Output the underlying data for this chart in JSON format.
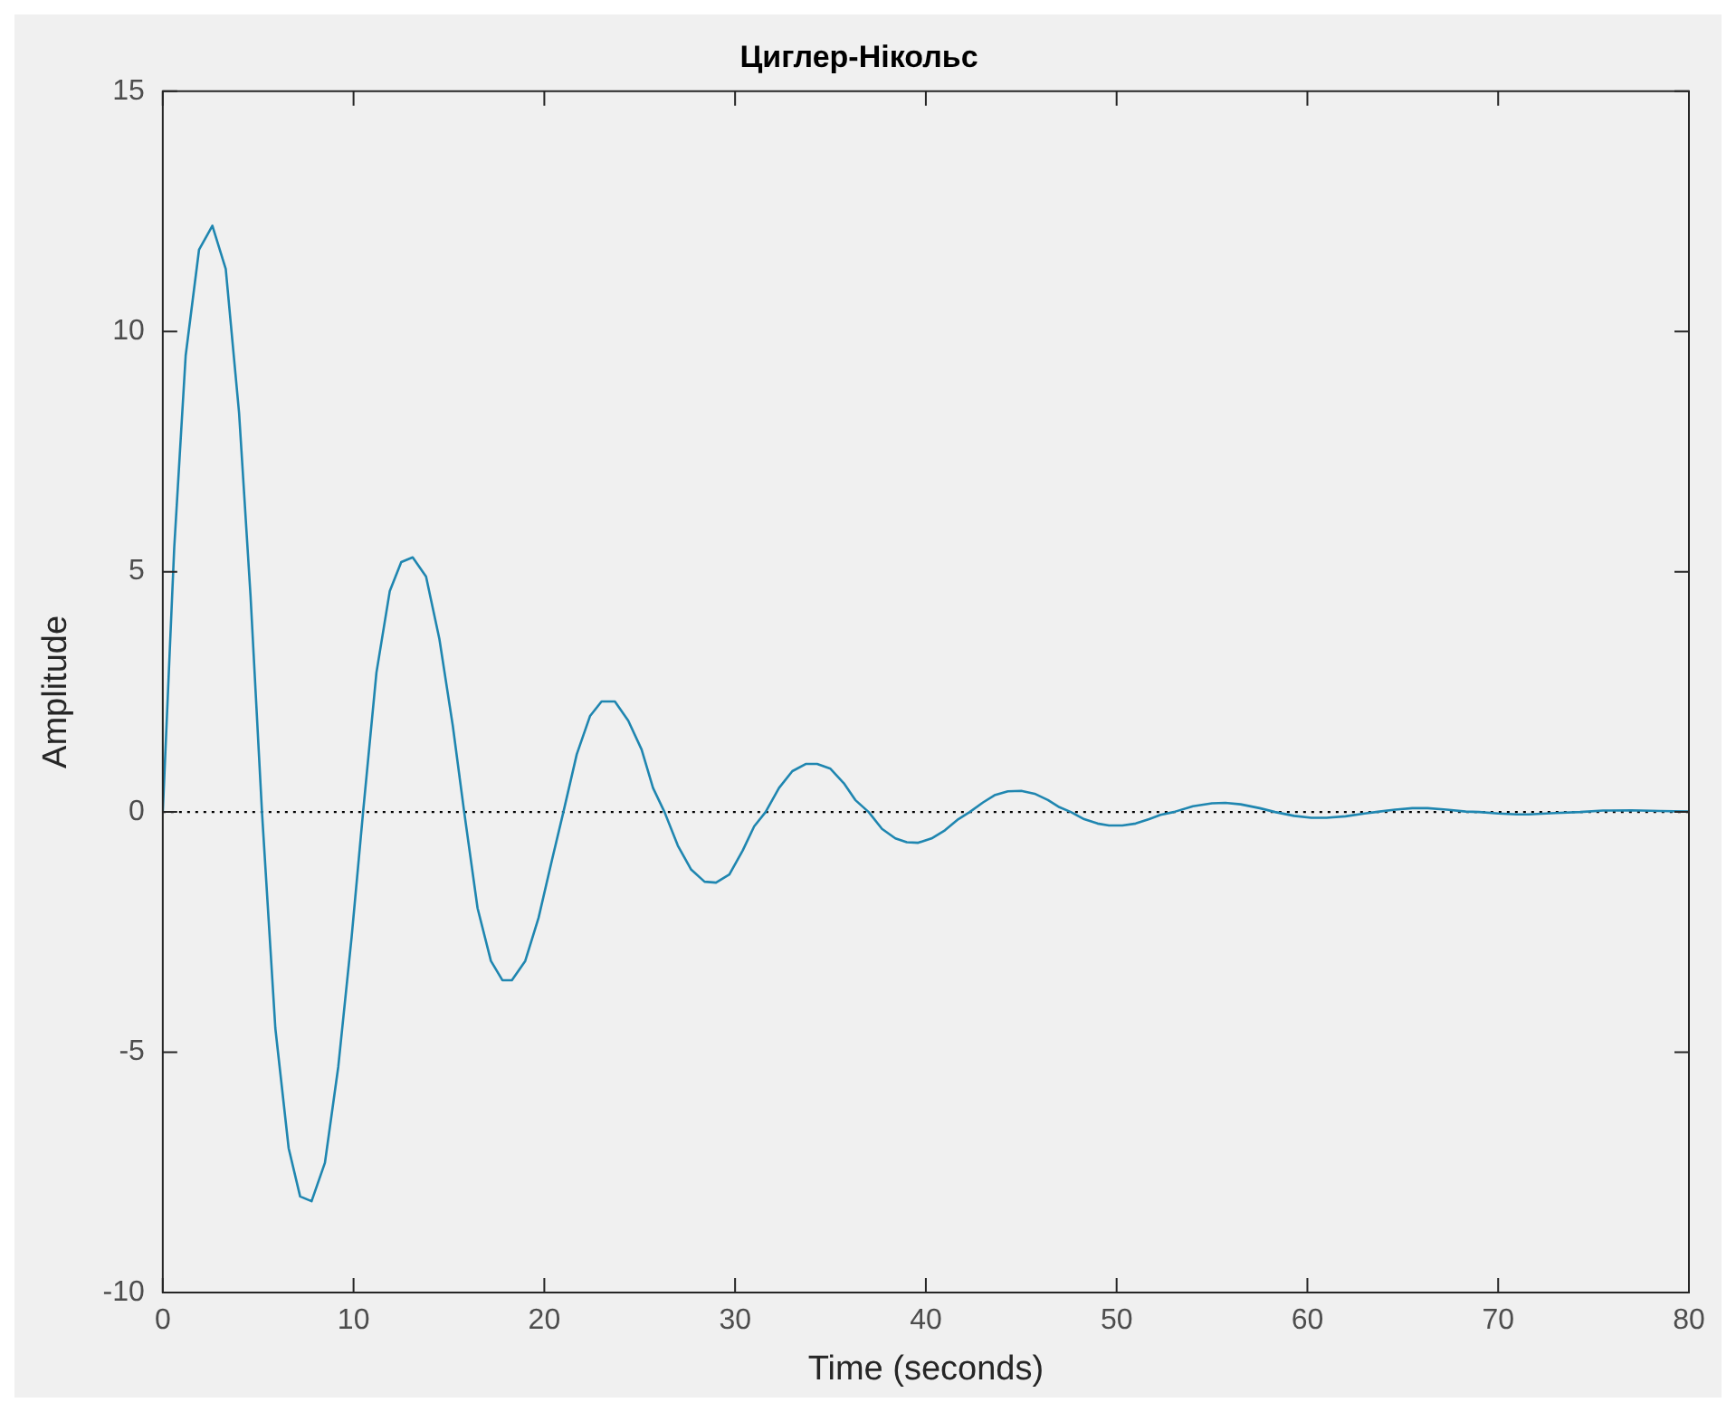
{
  "chart_data": {
    "type": "line",
    "title": "Циглер-Нікольс",
    "xlabel": "Time (seconds)",
    "ylabel": "Amplitude",
    "xlim": [
      0,
      80
    ],
    "xticks": [
      0,
      10,
      20,
      30,
      40,
      50,
      60,
      70,
      80
    ],
    "ylim": [
      -10,
      15
    ],
    "yticks": [
      -10,
      -5,
      0,
      5,
      10,
      15
    ],
    "ref_lines": [
      {
        "axis": "y",
        "value": 0,
        "color": "#000000",
        "line_style": "dotted"
      }
    ],
    "series": [
      {
        "color": "#1f86b0",
        "x": [
          0,
          0.6,
          1.2,
          1.9,
          2.6,
          3.3,
          4.0,
          4.6,
          5.2,
          5.9,
          6.6,
          7.2,
          7.8,
          8.5,
          9.2,
          9.9,
          10.5,
          11.2,
          11.9,
          12.5,
          13.1,
          13.8,
          14.5,
          15.2,
          15.8,
          16.5,
          17.2,
          17.8,
          18.3,
          19.0,
          19.7,
          20.4,
          21.0,
          21.7,
          22.4,
          23.0,
          23.7,
          24.4,
          25.1,
          25.7,
          26.3,
          27.0,
          27.7,
          28.4,
          29.0,
          29.7,
          30.4,
          31.0,
          31.6,
          32.3,
          33.0,
          33.7,
          34.3,
          35.0,
          35.7,
          36.3,
          37.0,
          37.7,
          38.4,
          39.0,
          39.6,
          40.3,
          41.0,
          41.7,
          42.3,
          43.0,
          43.6,
          44.3,
          45.0,
          45.7,
          46.4,
          47.0,
          47.6,
          48.3,
          49.0,
          49.6,
          50.3,
          51.0,
          51.7,
          52.3,
          53.0,
          54.0,
          55.0,
          55.7,
          56.5,
          57.5,
          58.3,
          59.3,
          60.2,
          61.0,
          62.0,
          63.0,
          63.6,
          64.6,
          65.5,
          66.3,
          67.3,
          68.3,
          69.0,
          70.0,
          71.0,
          71.6,
          73.0,
          74.3,
          75.5,
          77.0,
          78.5,
          80.0
        ],
        "values": [
          0,
          5.5,
          9.5,
          11.7,
          12.2,
          11.3,
          8.3,
          4.5,
          0,
          -4.5,
          -7.0,
          -8.0,
          -8.1,
          -7.3,
          -5.3,
          -2.6,
          0,
          2.9,
          4.6,
          5.2,
          5.3,
          4.9,
          3.6,
          1.8,
          0,
          -2.0,
          -3.1,
          -3.5,
          -3.5,
          -3.1,
          -2.2,
          -1.0,
          0,
          1.2,
          2.0,
          2.3,
          2.3,
          1.9,
          1.3,
          0.5,
          0,
          -0.7,
          -1.2,
          -1.45,
          -1.47,
          -1.3,
          -0.8,
          -0.3,
          0,
          0.5,
          0.85,
          1.0,
          1.0,
          0.9,
          0.6,
          0.25,
          0,
          -0.35,
          -0.55,
          -0.63,
          -0.64,
          -0.55,
          -0.38,
          -0.15,
          0,
          0.2,
          0.35,
          0.43,
          0.44,
          0.38,
          0.25,
          0.1,
          0,
          -0.15,
          -0.24,
          -0.28,
          -0.28,
          -0.24,
          -0.15,
          -0.06,
          0,
          0.12,
          0.18,
          0.19,
          0.16,
          0.08,
          0,
          -0.08,
          -0.12,
          -0.12,
          -0.09,
          -0.03,
          0,
          0.05,
          0.08,
          0.08,
          0.05,
          0.01,
          0,
          -0.03,
          -0.05,
          -0.05,
          -0.02,
          0,
          0.03,
          0.035,
          0.02,
          0.01
        ]
      }
    ]
  }
}
